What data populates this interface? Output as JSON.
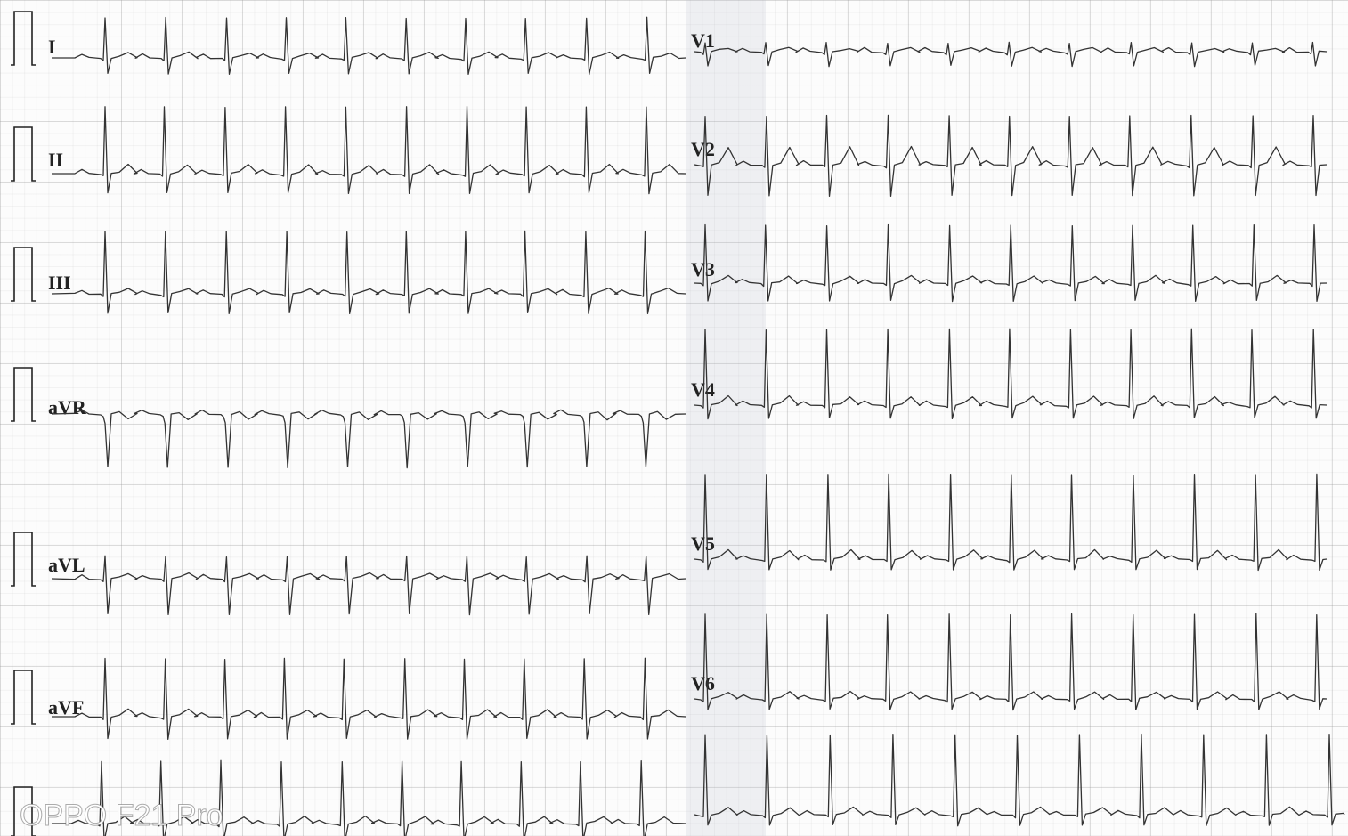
{
  "leads": {
    "left": [
      "I",
      "II",
      "III",
      "aVR",
      "aVL",
      "aVF"
    ],
    "right": [
      "V1",
      "V2",
      "V3",
      "V4",
      "V5",
      "V6"
    ]
  },
  "watermark": "OPPO F21 Pro"
}
